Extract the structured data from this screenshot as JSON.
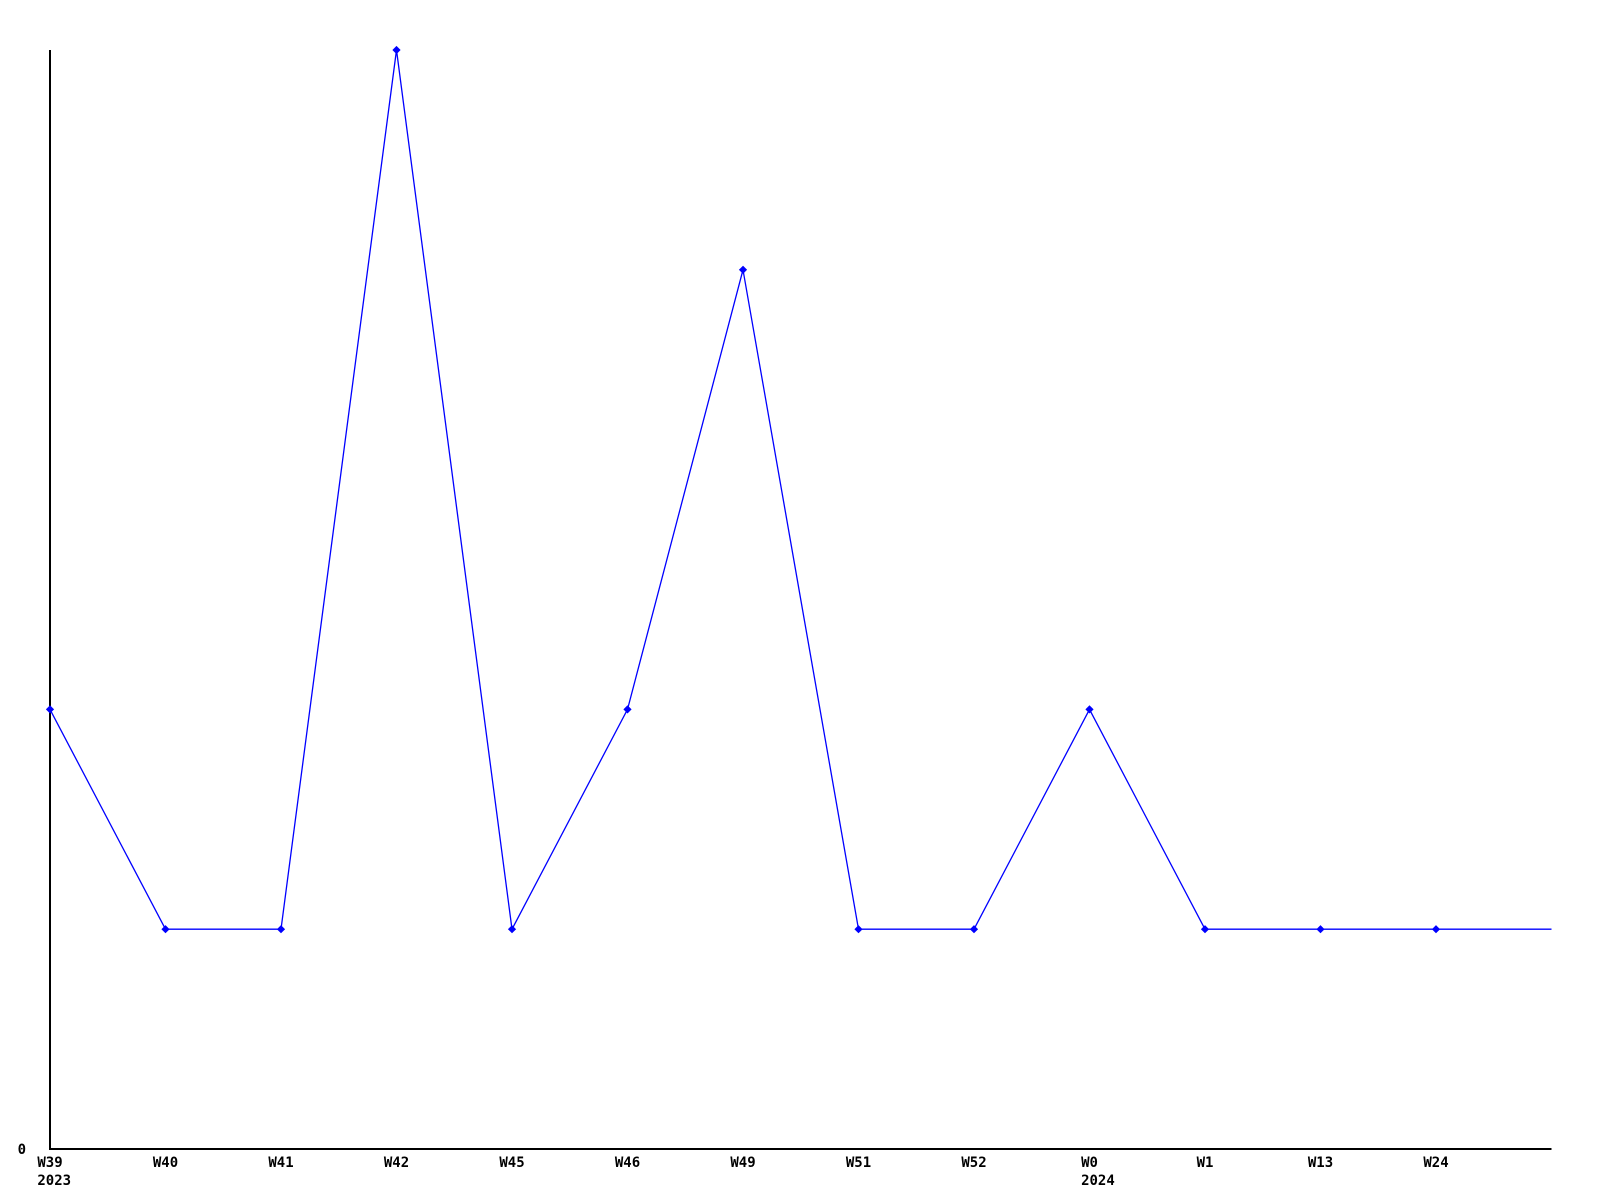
{
  "page": {
    "background": "#ffffff",
    "title": ""
  },
  "chart_data": {
    "type": "line",
    "title": "",
    "xlabel": "",
    "ylabel": "",
    "categories": [
      "W39",
      "W40",
      "W41",
      "W42",
      "W45",
      "W46",
      "W49",
      "W51",
      "W52",
      "W0",
      "W1",
      "W13",
      "W24"
    ],
    "values": [
      2,
      1,
      1,
      5,
      1,
      2,
      4,
      1,
      1,
      2,
      1,
      1,
      1
    ],
    "trailing_value": 1,
    "year_markers": [
      {
        "index": 0,
        "year": "2023"
      },
      {
        "index": 9,
        "year": "2024"
      }
    ],
    "y_tick_labels": [
      "0"
    ],
    "ylim": [
      0,
      5
    ],
    "grid": false,
    "legend": false,
    "marker": "diamond",
    "line_color": "#0000ff",
    "marker_color": "#0000cc",
    "axis_color": "#000000",
    "label_color": "#000000"
  }
}
